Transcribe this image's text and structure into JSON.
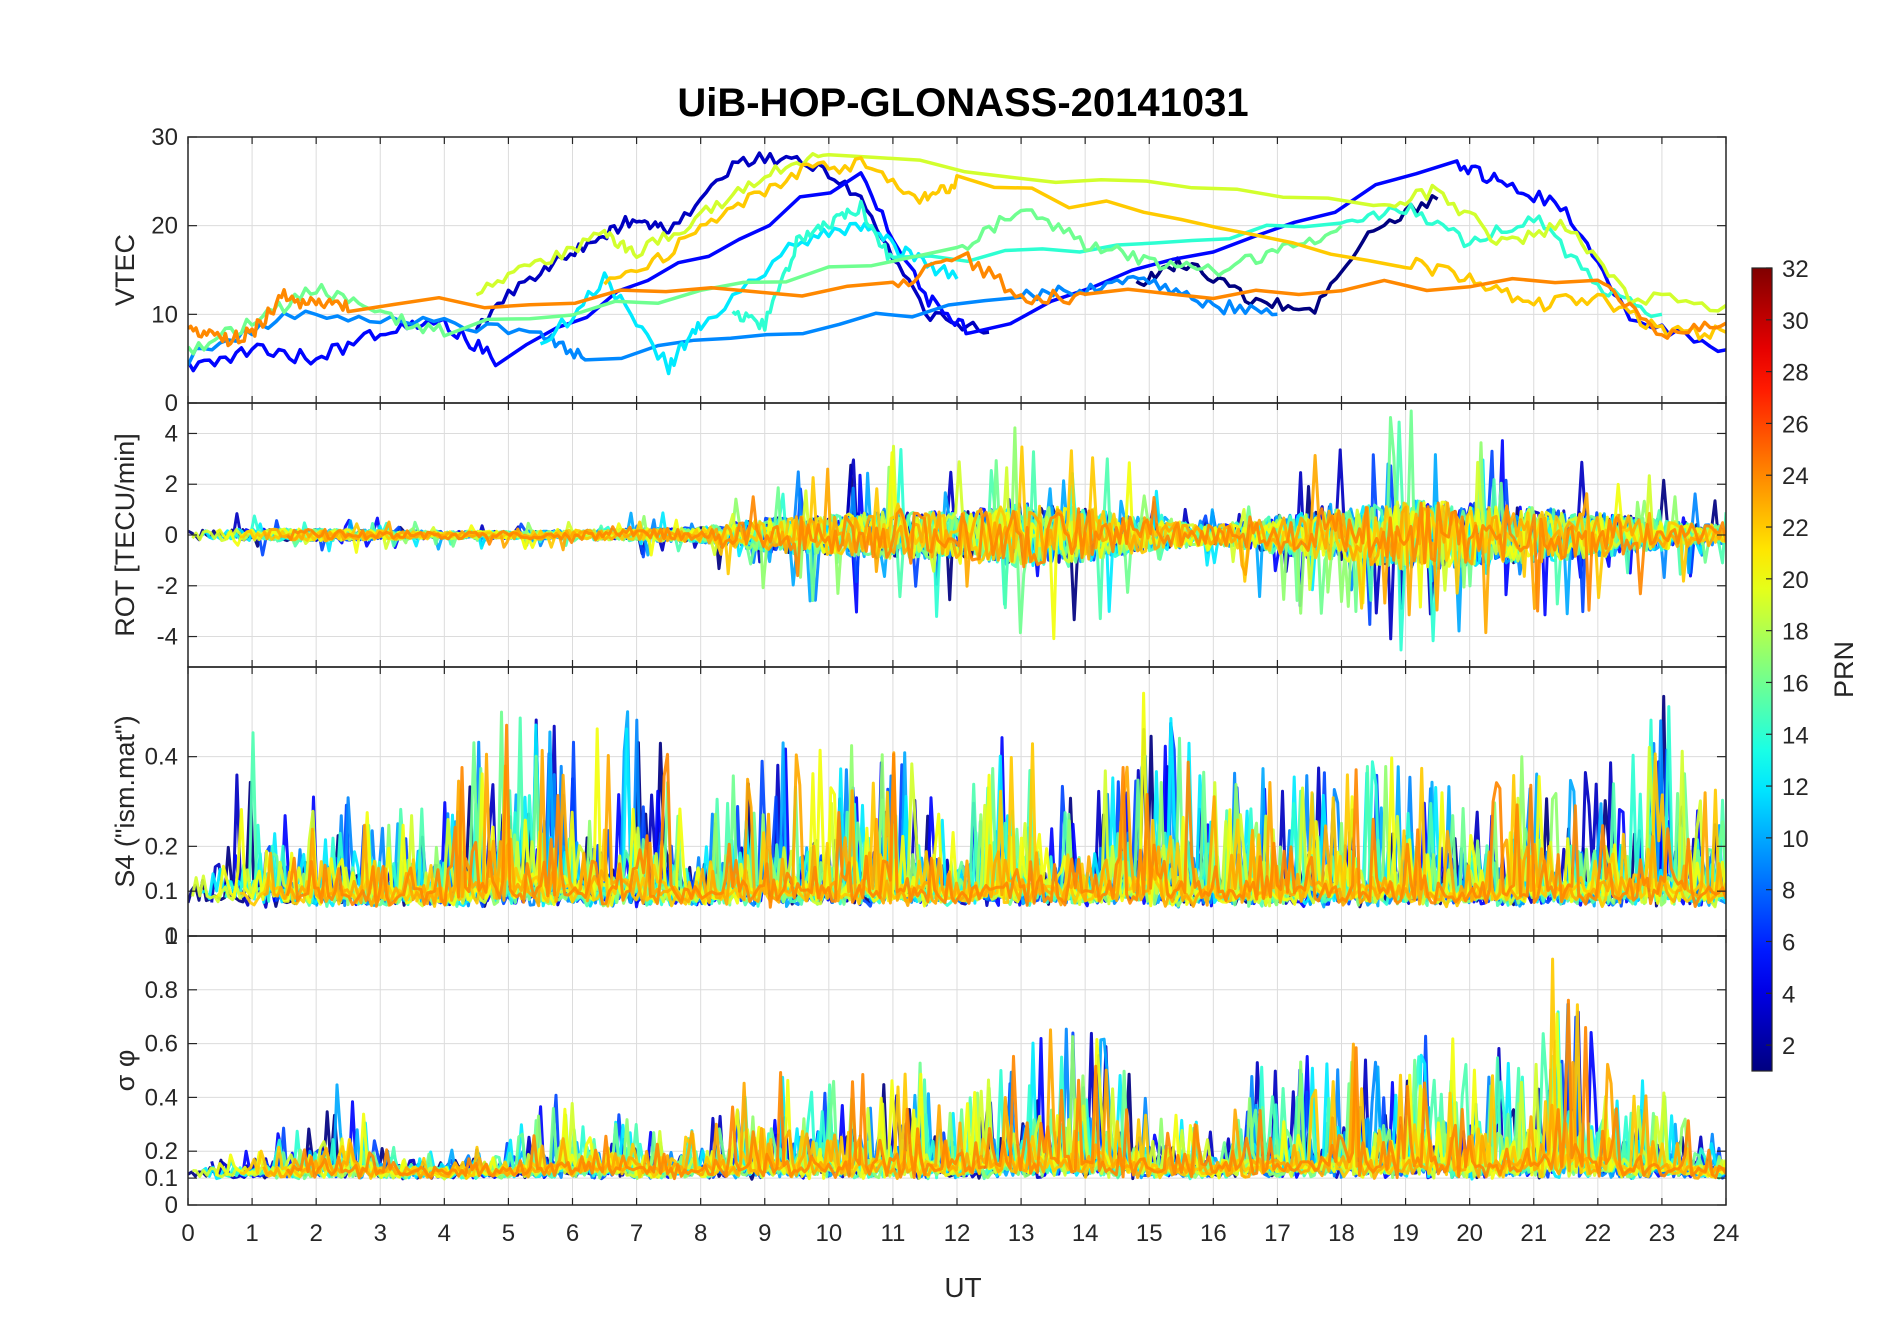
{
  "chart_data": {
    "type": "line",
    "title": "UiB-HOP-GLONASS-20141031",
    "xlabel": "UT",
    "xlim": [
      0,
      24
    ],
    "x_ticks": [
      "0",
      "1",
      "2",
      "3",
      "4",
      "5",
      "6",
      "7",
      "8",
      "9",
      "10",
      "11",
      "12",
      "13",
      "14",
      "15",
      "16",
      "17",
      "18",
      "19",
      "20",
      "21",
      "22",
      "23",
      "24"
    ],
    "colorbar": {
      "label": "PRN",
      "range": [
        1,
        32
      ],
      "ticks": [
        "2",
        "4",
        "6",
        "8",
        "10",
        "12",
        "14",
        "16",
        "18",
        "20",
        "22",
        "24",
        "26",
        "28",
        "30",
        "32"
      ],
      "colormap": "jet"
    },
    "panels": [
      {
        "ylabel": "VTEC",
        "ylim": [
          0,
          30
        ],
        "y_ticks": [
          "0",
          "10",
          "20",
          "30"
        ],
        "y_tick_values": [
          0,
          10,
          20,
          30
        ],
        "trend": {
          "x": [
            0,
            1,
            2,
            3,
            4,
            5,
            6,
            7,
            8,
            9,
            10,
            11,
            12,
            13,
            14,
            15,
            16,
            17,
            18,
            19,
            20,
            21,
            22,
            23,
            24
          ],
          "y": [
            7,
            9,
            11,
            9,
            8,
            12,
            16,
            19,
            21,
            24,
            23,
            18,
            14,
            12,
            13,
            14,
            13,
            14,
            19,
            20,
            21,
            20,
            15,
            9,
            8
          ]
        },
        "series": [
          {
            "prn": 1,
            "x": [
              14.8,
              15.5,
              16.5,
              17.5,
              18.5,
              19.5
            ],
            "y": [
              13,
              16,
              12,
              10,
              20,
              23
            ]
          },
          {
            "prn": 3,
            "x": [
              4.5,
              5.5,
              6.3,
              7.0,
              7.5,
              8.5,
              9.5,
              10.5,
              11.5,
              12.5
            ],
            "y": [
              9,
              15,
              18,
              21,
              19,
              27,
              28,
              23,
              10,
              8
            ]
          },
          {
            "prn": 5,
            "x": [
              0,
              1,
              2,
              3,
              4,
              4.8,
              10.5,
              11.5,
              12.2,
              19.8,
              20.5,
              21.5,
              22.5,
              24
            ],
            "y": [
              4,
              6,
              5,
              8,
              9,
              5,
              26,
              12,
              8,
              27,
              25,
              22,
              10,
              6
            ]
          },
          {
            "prn": 9,
            "x": [
              0,
              1.5,
              3.5,
              5.5,
              6.2,
              13,
              14,
              15,
              16,
              17
            ],
            "y": [
              5,
              10,
              9,
              8,
              5,
              12,
              13,
              14,
              11,
              10
            ]
          },
          {
            "prn": 12,
            "x": [
              5.5,
              6.5,
              7.5,
              8.0,
              9.5,
              10.5,
              11.2,
              12.0
            ],
            "y": [
              6,
              14,
              4,
              9,
              18,
              20,
              17,
              14
            ]
          },
          {
            "prn": 14,
            "x": [
              8.5,
              9.0,
              9.5,
              10.0,
              10.5,
              11,
              18,
              19,
              20,
              21,
              22,
              23
            ],
            "y": [
              10,
              9,
              18,
              20,
              22,
              16,
              20,
              22,
              18,
              21,
              13,
              10
            ]
          },
          {
            "prn": 16,
            "x": [
              0,
              1,
              2,
              3,
              4,
              12,
              13,
              14,
              15,
              16,
              17,
              18
            ],
            "y": [
              6,
              9,
              13,
              10,
              8,
              17,
              22,
              18,
              16,
              15,
              17,
              20
            ]
          },
          {
            "prn": 19,
            "x": [
              4.5,
              5.5,
              6.5,
              7.0,
              8.0,
              9.0,
              10.0,
              18.5,
              19.5,
              20.5,
              21.5,
              22.5,
              24
            ],
            "y": [
              13,
              16,
              19,
              17,
              21,
              26,
              28,
              22,
              24,
              18,
              20,
              12,
              11
            ]
          },
          {
            "prn": 22,
            "x": [
              6.5,
              7.5,
              8.5,
              9.5,
              10.5,
              11.5,
              12.0,
              19.0,
              20.0,
              21.0,
              22.0,
              23.0,
              24
            ],
            "y": [
              13,
              17,
              22,
              26,
              27,
              23,
              25,
              16,
              14,
              11,
              12,
              8,
              8
            ]
          },
          {
            "prn": 24,
            "x": [
              0,
              0.5,
              1.0,
              1.5,
              2.0,
              2.5,
              11,
              12,
              13,
              14,
              22,
              23,
              24
            ],
            "y": [
              9,
              7,
              8,
              12,
              11,
              11,
              13,
              17,
              12,
              12,
              14,
              8,
              9
            ]
          }
        ]
      },
      {
        "ylabel": "ROT [TECU/min]",
        "ylim": [
          -5.2,
          5.2
        ],
        "y_ticks": [
          "-4",
          "-2",
          "0",
          "2",
          "4"
        ],
        "y_tick_values": [
          -4,
          -2,
          0,
          2,
          4
        ],
        "envelope": {
          "x": [
            0,
            1,
            2,
            3,
            4,
            5,
            6,
            7,
            8,
            9,
            10,
            11,
            12,
            13,
            14,
            15,
            16,
            17,
            18,
            19,
            20,
            21,
            22,
            23,
            24
          ],
          "amplitude": [
            0.7,
            0.8,
            0.8,
            0.6,
            0.5,
            0.5,
            0.6,
            0.8,
            1.0,
            2.2,
            2.6,
            3.2,
            3.0,
            4.2,
            3.5,
            2.2,
            1.2,
            2.6,
            3.4,
            4.6,
            4.2,
            3.6,
            3.0,
            2.0,
            1.2
          ]
        }
      },
      {
        "ylabel": "S4 (\"ism.mat\")",
        "ylim": [
          0,
          0.6
        ],
        "y_ticks": [
          "0",
          "0.1",
          "0.2",
          "0.4"
        ],
        "y_tick_values": [
          0,
          0.1,
          0.2,
          0.4
        ],
        "floor": 0.08,
        "envelope": {
          "x": [
            0,
            1,
            2,
            3,
            4,
            5,
            6,
            7,
            8,
            9,
            10,
            11,
            12,
            13,
            14,
            15,
            16,
            17,
            18,
            19,
            20,
            21,
            22,
            23,
            24
          ],
          "peak": [
            0.22,
            0.52,
            0.3,
            0.32,
            0.32,
            0.58,
            0.45,
            0.52,
            0.28,
            0.45,
            0.42,
            0.45,
            0.3,
            0.52,
            0.32,
            0.58,
            0.36,
            0.4,
            0.38,
            0.46,
            0.34,
            0.44,
            0.38,
            0.58,
            0.3
          ]
        }
      },
      {
        "ylabel": "σ φ",
        "ylim": [
          0,
          1
        ],
        "y_ticks": [
          "0",
          "0.1",
          "0.2",
          "0.4",
          "0.6",
          "0.8",
          "1"
        ],
        "y_tick_values": [
          0,
          0.1,
          0.2,
          0.4,
          0.6,
          0.8,
          1
        ],
        "floor": 0.12,
        "envelope": {
          "x": [
            0,
            1,
            2,
            2.5,
            3,
            4,
            5,
            6,
            7,
            8,
            9,
            10,
            11,
            11.3,
            12,
            13,
            14,
            15,
            16,
            16.7,
            17,
            18,
            19,
            19.4,
            20,
            21,
            21.2,
            22,
            23,
            24
          ],
          "peak": [
            0.18,
            0.22,
            0.35,
            0.52,
            0.22,
            0.2,
            0.28,
            0.45,
            0.32,
            0.3,
            0.52,
            0.5,
            0.55,
            0.7,
            0.35,
            0.62,
            0.72,
            0.42,
            0.28,
            0.75,
            0.5,
            0.62,
            0.56,
            0.78,
            0.6,
            0.55,
            0.98,
            0.6,
            0.42,
            0.24
          ]
        }
      }
    ]
  }
}
